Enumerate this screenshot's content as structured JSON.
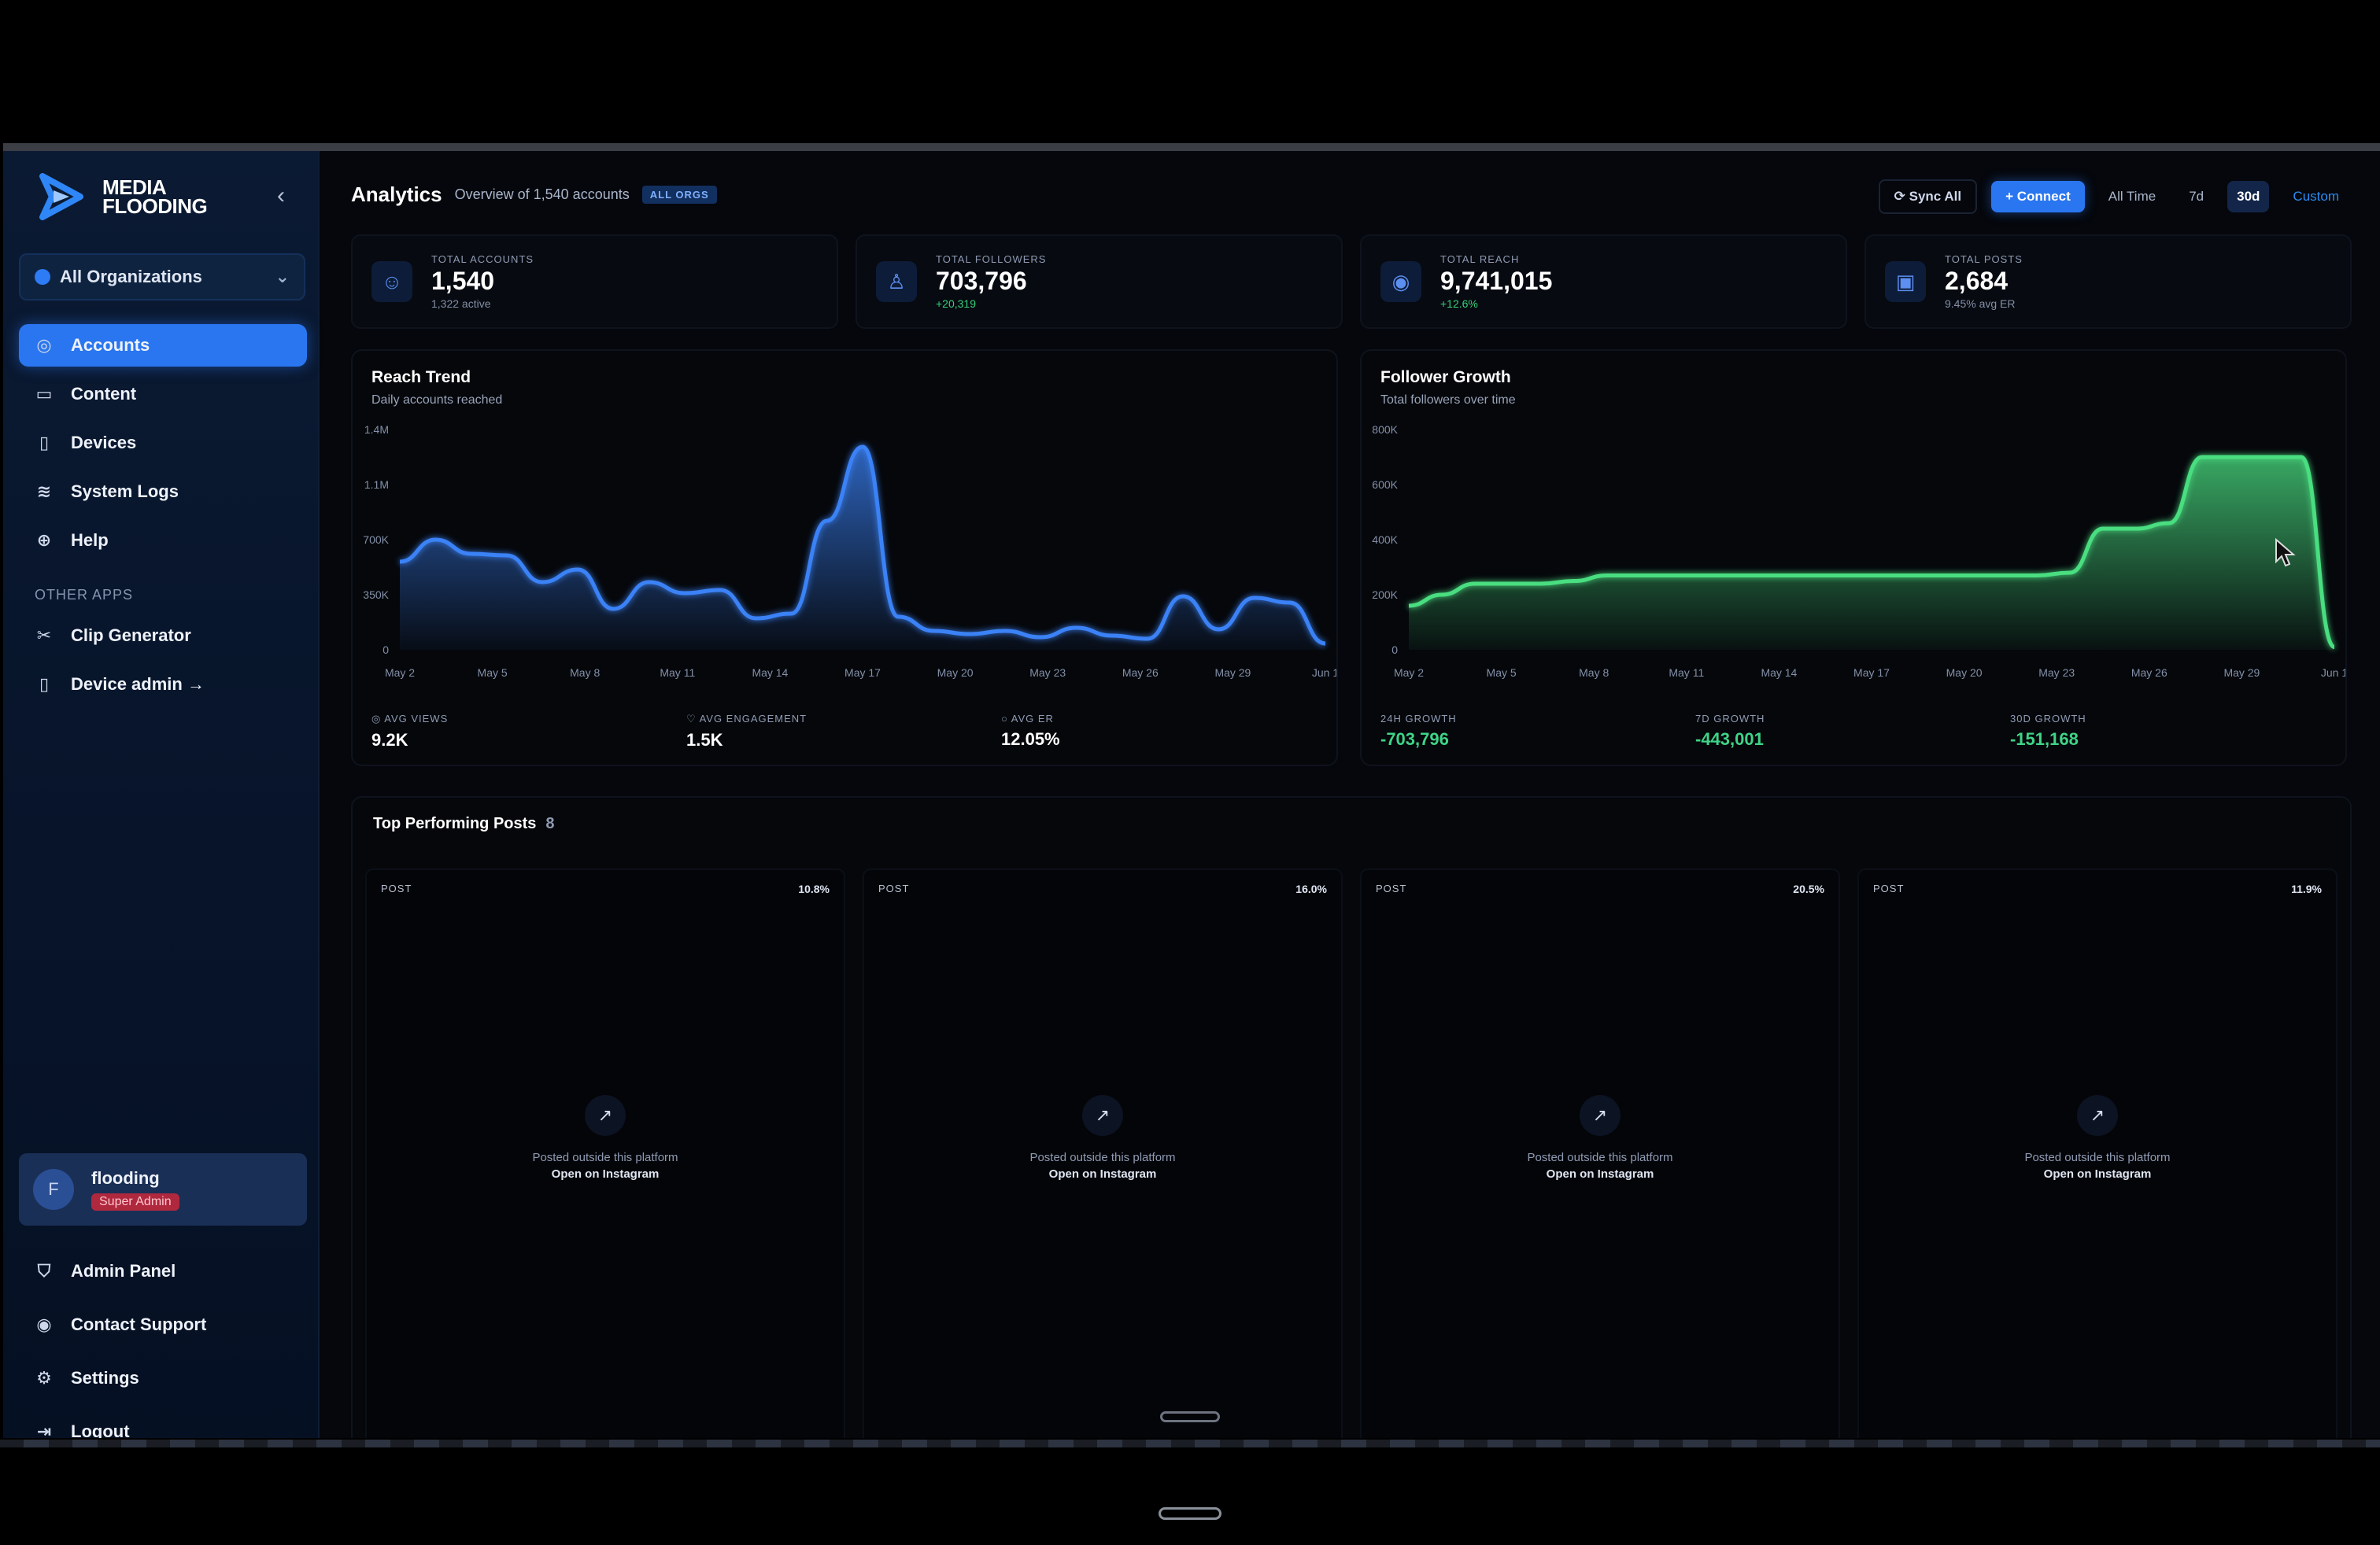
{
  "brand": {
    "line1": "MEDIA",
    "line2": "FLOODING"
  },
  "sidebar": {
    "org_select": "All Organizations",
    "nav": [
      {
        "label": "Accounts",
        "icon": "accounts-icon",
        "active": true
      },
      {
        "label": "Content",
        "icon": "content-icon",
        "active": false
      },
      {
        "label": "Devices",
        "icon": "devices-icon",
        "active": false
      },
      {
        "label": "System Logs",
        "icon": "logs-icon",
        "active": false
      },
      {
        "label": "Help",
        "icon": "help-icon",
        "active": false
      }
    ],
    "other_label": "OTHER APPS",
    "other": [
      {
        "label": "Clip Generator",
        "icon": "scissors-icon"
      },
      {
        "label": "Device admin →",
        "icon": "device-admin-icon"
      }
    ],
    "user": {
      "initial": "F",
      "name": "flooding",
      "role": "Super Admin"
    },
    "bottom": [
      {
        "label": "Admin Panel",
        "icon": "shield-icon"
      },
      {
        "label": "Contact Support",
        "icon": "support-icon"
      },
      {
        "label": "Settings",
        "icon": "gear-icon"
      },
      {
        "label": "Logout",
        "icon": "logout-icon"
      }
    ]
  },
  "header": {
    "title": "Analytics",
    "subtitle": "Overview of 1,540 accounts",
    "badge": "ALL ORGS",
    "sync": "Sync All",
    "connect": "+ Connect",
    "ranges": [
      "All Time",
      "7d",
      "30d",
      "Custom"
    ],
    "selected_range": "30d"
  },
  "stats": [
    {
      "label": "TOTAL ACCOUNTS",
      "value": "1,540",
      "sub": "1,322 active",
      "icon": "users-icon",
      "positive": false
    },
    {
      "label": "TOTAL FOLLOWERS",
      "value": "703,796",
      "sub": "+20,319",
      "icon": "follower-icon",
      "positive": true
    },
    {
      "label": "TOTAL REACH",
      "value": "9,741,015",
      "sub": "+12.6%",
      "icon": "eye-icon",
      "positive": true
    },
    {
      "label": "TOTAL POSTS",
      "value": "2,684",
      "sub": "9.45% avg ER",
      "icon": "posts-icon",
      "positive": false
    }
  ],
  "reach": {
    "title": "Reach Trend",
    "subtitle": "Daily accounts reached",
    "metrics": [
      {
        "label": "AVG VIEWS",
        "value": "9.2K"
      },
      {
        "label": "AVG ENGAGEMENT",
        "value": "1.5K"
      },
      {
        "label": "AVG ER",
        "value": "12.05%"
      }
    ]
  },
  "growth": {
    "title": "Follower Growth",
    "subtitle": "Total followers over time",
    "metrics": [
      {
        "label": "24H GROWTH",
        "value": "-703,796"
      },
      {
        "label": "7D GROWTH",
        "value": "-443,001"
      },
      {
        "label": "30D GROWTH",
        "value": "-151,168"
      }
    ]
  },
  "chart_data": [
    {
      "type": "area",
      "title": "Reach Trend",
      "subtitle": "Daily accounts reached",
      "color": "#3b82f6",
      "ylim": [
        0,
        1400000
      ],
      "yticks": [
        "0",
        "350K",
        "700K",
        "1.1M",
        "1.4M"
      ],
      "ytick_values": [
        0,
        350000,
        700000,
        1050000,
        1400000
      ],
      "xticks": [
        "May 2",
        "May 5",
        "May 8",
        "May 11",
        "May 14",
        "May 17",
        "May 20",
        "May 23",
        "May 26",
        "May 29",
        "Jun 1"
      ],
      "values": [
        560000,
        700000,
        610000,
        600000,
        430000,
        510000,
        260000,
        430000,
        360000,
        380000,
        200000,
        230000,
        820000,
        1290000,
        210000,
        120000,
        100000,
        120000,
        80000,
        140000,
        90000,
        70000,
        340000,
        130000,
        330000,
        300000,
        40000
      ]
    },
    {
      "type": "area",
      "title": "Follower Growth",
      "subtitle": "Total followers over time",
      "color": "#4ade80",
      "ylim": [
        0,
        800000
      ],
      "yticks": [
        "0",
        "200K",
        "400K",
        "600K",
        "800K"
      ],
      "ytick_values": [
        0,
        200000,
        400000,
        600000,
        800000
      ],
      "xticks": [
        "May 2",
        "May 5",
        "May 8",
        "May 11",
        "May 14",
        "May 17",
        "May 20",
        "May 23",
        "May 26",
        "May 29",
        "Jun 1"
      ],
      "values": [
        160000,
        200000,
        240000,
        240000,
        240000,
        250000,
        270000,
        270000,
        270000,
        270000,
        270000,
        270000,
        270000,
        270000,
        270000,
        270000,
        270000,
        270000,
        270000,
        270000,
        280000,
        440000,
        440000,
        460000,
        700000,
        700000,
        700000,
        700000,
        10000
      ]
    }
  ],
  "posts": {
    "title": "Top Performing Posts",
    "count": "8",
    "items": [
      {
        "tag": "POST",
        "pct": "10.8%",
        "note": "Posted outside this platform",
        "link": "Open on Instagram"
      },
      {
        "tag": "POST",
        "pct": "16.0%",
        "note": "Posted outside this platform",
        "link": "Open on Instagram"
      },
      {
        "tag": "POST",
        "pct": "20.5%",
        "note": "Posted outside this platform",
        "link": "Open on Instagram"
      },
      {
        "tag": "POST",
        "pct": "11.9%",
        "note": "Posted outside this platform",
        "link": "Open on Instagram"
      }
    ]
  }
}
